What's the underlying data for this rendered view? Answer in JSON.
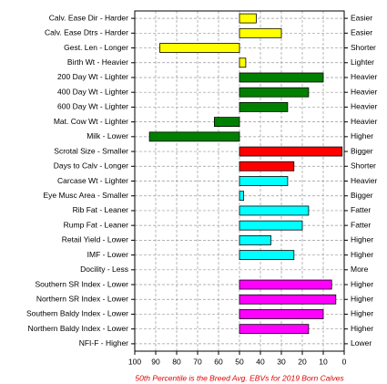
{
  "chart_data": {
    "type": "bar",
    "orientation": "horizontal",
    "categories": [
      "Calv. Ease Dir - Harder",
      "Calv. Ease Dtrs - Harder",
      "Gest. Len - Longer",
      "Birth Wt - Heavier",
      "200 Day Wt - Lighter",
      "400 Day Wt - Lighter",
      "600 Day Wt - Lighter",
      "Mat. Cow Wt - Lighter",
      "Milk - Lower",
      "Scrotal Size - Smaller",
      "Days to Calv - Longer",
      "Carcase Wt - Lighter",
      "Eye Musc Area - Smaller",
      "Rib Fat - Leaner",
      "Rump Fat - Leaner",
      "Retail Yield - Lower",
      "IMF - Lower",
      "Docility - Less",
      "Southern SR Index - Lower",
      "Northern SR Index - Lower",
      "Southern Baldy Index - Lower",
      "Northern Baldy Index - Lower",
      "NFI-F - Higher"
    ],
    "right_labels": [
      "Easier",
      "Easier",
      "Shorter",
      "Lighter",
      "Heavier",
      "Heavier",
      "Heavier",
      "Heavier",
      "Higher",
      "Bigger",
      "Shorter",
      "Heavier",
      "Bigger",
      "Fatter",
      "Fatter",
      "Higher",
      "Higher",
      "More",
      "Higher",
      "Higher",
      "Higher",
      "Higher",
      "Lower"
    ],
    "values": [
      42,
      30,
      88,
      47,
      10,
      17,
      27,
      62,
      93,
      1,
      24,
      27,
      48,
      17,
      20,
      35,
      24,
      null,
      6,
      4,
      10,
      17,
      null
    ],
    "colors": [
      "#ffff00",
      "#ffff00",
      "#ffff00",
      "#ffff00",
      "#008000",
      "#008000",
      "#008000",
      "#008000",
      "#008000",
      "#ff0000",
      "#ff0000",
      "#00ffff",
      "#00ffff",
      "#00ffff",
      "#00ffff",
      "#00ffff",
      "#00ffff",
      null,
      "#ff00ff",
      "#ff00ff",
      "#ff00ff",
      "#ff00ff",
      null
    ],
    "bar_base": 50,
    "xlim": [
      100,
      0
    ],
    "xticks": [
      100,
      90,
      80,
      70,
      60,
      50,
      40,
      30,
      20,
      10,
      0
    ],
    "grid": true,
    "footnote": "50th Percentile is the Breed Avg. EBVs for 2019 Born Calves"
  }
}
